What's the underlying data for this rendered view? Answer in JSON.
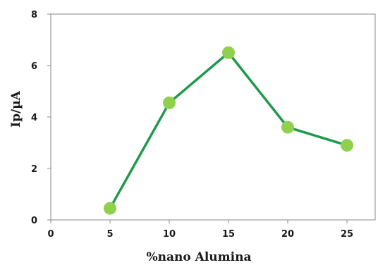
{
  "chart_data": {
    "type": "line",
    "x": [
      5,
      10,
      15,
      20,
      25
    ],
    "series": [
      {
        "values": [
          0.45,
          4.55,
          6.5,
          3.6,
          2.9
        ]
      }
    ],
    "xlabel": "%nano Alumina",
    "ylabel": "Ip/µA",
    "xlim": [
      0,
      25
    ],
    "ylim": [
      0,
      8
    ],
    "xticks": [
      "0",
      "5",
      "10",
      "15",
      "20",
      "25"
    ],
    "yticks": [
      "0",
      "2",
      "4",
      "6",
      "8"
    ],
    "grid": false,
    "line_color": "#1f9a4c",
    "marker_color": "#8fd14f"
  }
}
